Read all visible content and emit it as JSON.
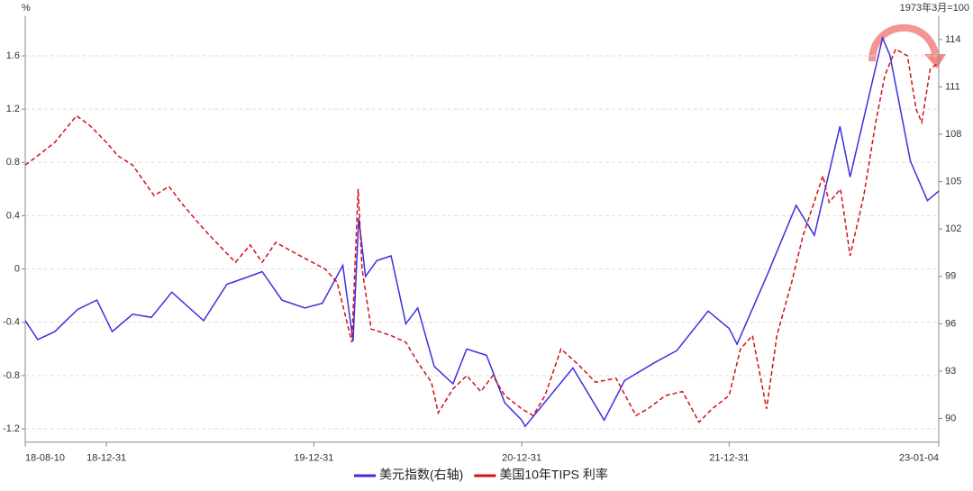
{
  "chart_data": {
    "type": "line",
    "y_unit_label": "%",
    "y2_unit_label": "1973年3月=100",
    "xlim": [
      "18-08-10",
      "23-01-04"
    ],
    "xticks": [
      "18-08-10",
      "18-12-31",
      "19-12-31",
      "20-12-31",
      "21-12-31",
      "23-01-04"
    ],
    "ylim": [
      -1.3,
      1.9
    ],
    "yticks": [
      1.6,
      1.2,
      0.8,
      0.4,
      0,
      -0.4,
      -0.8,
      -1.2
    ],
    "y2lim": [
      88.5,
      115.5
    ],
    "y2ticks": [
      114,
      111,
      108,
      105,
      102,
      99,
      96,
      93,
      90
    ],
    "grid": true,
    "series": [
      {
        "name": "美元指数(右轴)",
        "color": "#3b2fe0",
        "axis": "y2",
        "line_style": "solid",
        "x": [
          "18-08-10",
          "18-09-01",
          "18-10-01",
          "18-11-10",
          "18-12-14",
          "19-01-10",
          "19-02-15",
          "19-03-20",
          "19-04-25",
          "19-06-20",
          "19-07-31",
          "19-09-01",
          "19-10-01",
          "19-11-05",
          "19-12-15",
          "20-01-15",
          "20-02-20",
          "20-03-09",
          "20-03-19",
          "20-03-31",
          "20-04-20",
          "20-05-15",
          "20-06-10",
          "20-07-01",
          "20-07-30",
          "20-09-01",
          "20-09-25",
          "20-10-30",
          "20-12-01",
          "20-12-31",
          "21-01-06",
          "21-03-31",
          "21-05-25",
          "21-06-30",
          "21-08-20",
          "21-09-30",
          "21-11-24",
          "21-12-31",
          "22-01-14",
          "22-03-07",
          "22-04-28",
          "22-05-30",
          "22-07-14",
          "22-08-01",
          "22-09-27",
          "22-10-10",
          "22-11-15",
          "22-12-15",
          "23-01-04"
        ],
        "values": [
          96.2,
          95.0,
          95.5,
          96.9,
          97.5,
          95.5,
          96.6,
          96.4,
          98.0,
          96.2,
          98.5,
          98.9,
          99.3,
          97.5,
          97.0,
          97.3,
          99.7,
          94.9,
          102.7,
          99.0,
          100.0,
          100.3,
          96.0,
          97.0,
          93.3,
          92.2,
          94.4,
          94.0,
          91.0,
          89.9,
          89.5,
          93.2,
          89.9,
          92.4,
          93.5,
          94.3,
          96.8,
          95.7,
          94.7,
          99.0,
          103.5,
          101.6,
          108.5,
          105.3,
          114.1,
          113.0,
          106.3,
          103.8,
          104.4
        ]
      },
      {
        "name": "美国10年TIPS 利率",
        "color": "#d0101a",
        "axis": "y",
        "line_style": "dashed",
        "x": [
          "18-08-10",
          "18-09-01",
          "18-10-01",
          "18-11-08",
          "18-12-01",
          "18-12-31",
          "19-01-20",
          "19-02-15",
          "19-03-25",
          "19-04-20",
          "19-05-15",
          "19-06-10",
          "19-07-01",
          "19-08-15",
          "19-09-10",
          "19-10-01",
          "19-10-25",
          "19-11-15",
          "19-12-15",
          "20-01-20",
          "20-02-10",
          "20-03-07",
          "20-03-18",
          "20-03-25",
          "20-04-10",
          "20-05-15",
          "20-06-10",
          "20-07-01",
          "20-07-25",
          "20-08-06",
          "20-09-01",
          "20-09-25",
          "20-10-20",
          "20-11-10",
          "20-12-01",
          "20-12-31",
          "21-01-20",
          "21-02-10",
          "21-03-10",
          "21-04-10",
          "21-05-10",
          "21-06-15",
          "21-07-20",
          "21-08-10",
          "21-09-10",
          "21-10-10",
          "21-11-08",
          "21-12-01",
          "21-12-31",
          "22-01-20",
          "22-02-10",
          "22-03-07",
          "22-03-25",
          "22-04-20",
          "22-05-10",
          "22-06-14",
          "22-06-25",
          "22-07-15",
          "22-08-01",
          "22-08-25",
          "22-09-15",
          "22-10-01",
          "22-10-20",
          "22-11-10",
          "22-11-25",
          "22-12-05",
          "22-12-20",
          "23-01-04"
        ],
        "values": [
          0.78,
          0.85,
          0.95,
          1.15,
          1.08,
          0.95,
          0.85,
          0.78,
          0.55,
          0.62,
          0.48,
          0.35,
          0.25,
          0.05,
          0.18,
          0.05,
          0.2,
          0.15,
          0.08,
          0.0,
          -0.1,
          -0.55,
          0.6,
          0.0,
          -0.45,
          -0.5,
          -0.55,
          -0.7,
          -0.85,
          -1.08,
          -0.9,
          -0.8,
          -0.92,
          -0.8,
          -0.95,
          -1.05,
          -1.1,
          -0.95,
          -0.6,
          -0.72,
          -0.85,
          -0.82,
          -1.1,
          -1.05,
          -0.95,
          -0.92,
          -1.15,
          -1.05,
          -0.95,
          -0.6,
          -0.5,
          -1.05,
          -0.5,
          -0.1,
          0.25,
          0.7,
          0.5,
          0.6,
          0.1,
          0.55,
          1.1,
          1.45,
          1.65,
          1.6,
          1.2,
          1.1,
          1.5,
          1.55
        ]
      }
    ]
  }
}
